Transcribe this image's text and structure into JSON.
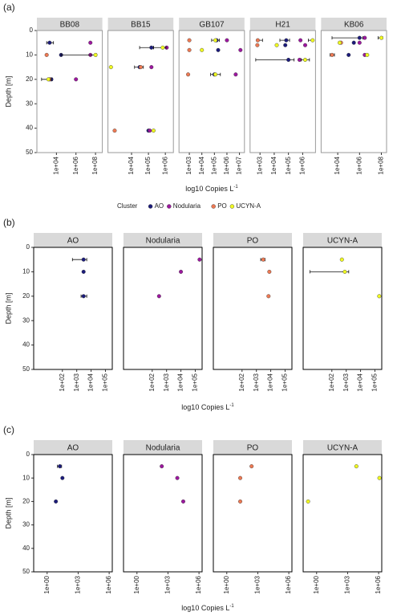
{
  "chart_data": [
    {
      "type": "scatter",
      "panel_label": "(a)",
      "ylabel": "Depth [m]",
      "xlabel": "log10 Copies L",
      "xlabel_sup": "-1",
      "ylim": [
        0,
        50
      ],
      "y_reversed": true,
      "yticks": [
        0,
        10,
        20,
        30,
        40,
        50
      ],
      "xlog": true,
      "legend_title": "Cluster",
      "facet_border": "#9a9a9a",
      "series": [
        {
          "name": "AO",
          "color": "#1b1b7a"
        },
        {
          "name": "Nodularia",
          "color": "#9c179e"
        },
        {
          "name": "PO",
          "color": "#ed7953"
        },
        {
          "name": "UCYN-A",
          "color": "#f0f921"
        }
      ],
      "facets": [
        {
          "title": "BB08",
          "xlim": [
            100,
            500000000
          ],
          "xticks": [
            {
              "value": 10000,
              "label": "1e+04"
            },
            {
              "value": 1000000,
              "label": "1e+06"
            },
            {
              "value": 100000000,
              "label": "1e+08"
            }
          ],
          "series": [
            {
              "y": [
                5,
                10,
                20
              ],
              "x": [
                2000,
                30000,
                3000
              ],
              "xerr": [
                [
                  1000,
                  5000
                ],
                null,
                [
                  2000,
                  4000
                ]
              ]
            },
            {
              "y": [
                5,
                10,
                20
              ],
              "x": [
                30000000,
                30000000,
                1000000
              ],
              "xerr": [
                null,
                null,
                null
              ]
            },
            {
              "y": [
                10,
                20
              ],
              "x": [
                1000,
                2000
              ],
              "xerr": [
                null,
                null
              ]
            },
            {
              "y": [
                10,
                20
              ],
              "x": [
                100000000,
                1500
              ],
              "xerr": [
                [
                  30000,
                  130000000
                ],
                [
                  300,
                  3000
                ]
              ]
            }
          ]
        },
        {
          "title": "BB15",
          "xlim": [
            400,
            3000000
          ],
          "xticks": [
            {
              "value": 10000,
              "label": "1e+04"
            },
            {
              "value": 100000,
              "label": "1e+05"
            },
            {
              "value": 1000000,
              "label": "1e+06"
            }
          ],
          "series": [
            {
              "y": [
                7,
                15,
                41
              ],
              "x": [
                150000,
                30000,
                100000
              ],
              "xerr": [
                [
                  30000,
                  200000
                ],
                [
                  15000,
                  50000
                ],
                null
              ]
            },
            {
              "y": [
                7,
                15,
                41
              ],
              "x": [
                1200000,
                150000,
                120000
              ],
              "xerr": [
                null,
                null,
                null
              ]
            },
            {
              "y": [
                15,
                41
              ],
              "x": [
                35000,
                1000
              ],
              "xerr": [
                null,
                null
              ]
            },
            {
              "y": [
                7,
                15,
                41
              ],
              "x": [
                700000,
                600,
                200000
              ],
              "xerr": [
                [
                  200000,
                  1100000
                ],
                null,
                null
              ]
            }
          ]
        },
        {
          "title": "GB107",
          "xlim": [
            150,
            25000000
          ],
          "xticks": [
            {
              "value": 1000,
              "label": "1e+03"
            },
            {
              "value": 10000,
              "label": "1e+04"
            },
            {
              "value": 100000,
              "label": "1e+05"
            },
            {
              "value": 1000000,
              "label": "1e+06"
            },
            {
              "value": 10000000,
              "label": "1e+07"
            }
          ],
          "series": [
            {
              "y": [
                4,
                8,
                18
              ],
              "x": [
                150000,
                200000,
                100000
              ],
              "xerr": [
                [
                  60000,
                  250000
                ],
                null,
                [
                  50000,
                  300000
                ]
              ]
            },
            {
              "y": [
                4,
                8,
                18
              ],
              "x": [
                1000000,
                12000000,
                5000000
              ],
              "xerr": [
                null,
                null,
                null
              ]
            },
            {
              "y": [
                4,
                8,
                18
              ],
              "x": [
                1000,
                1000,
                800
              ],
              "xerr": [
                null,
                null,
                null
              ]
            },
            {
              "y": [
                4,
                8,
                18
              ],
              "x": [
                120000,
                10000,
                120000
              ],
              "xerr": [
                null,
                null,
                null
              ]
            }
          ]
        },
        {
          "title": "H21",
          "xlim": [
            200,
            8000000
          ],
          "xticks": [
            {
              "value": 1000,
              "label": "1e+03"
            },
            {
              "value": 10000,
              "label": "1e+04"
            },
            {
              "value": 100000,
              "label": "1e+05"
            },
            {
              "value": 1000000,
              "label": "1e+06"
            }
          ],
          "series": [
            {
              "y": [
                4,
                6,
                12
              ],
              "x": [
                70000,
                60000,
                100000
              ],
              "xerr": [
                [
                  25000,
                  120000
                ],
                null,
                [
                  500,
                  250000
                ]
              ]
            },
            {
              "y": [
                4,
                6,
                12
              ],
              "x": [
                700000,
                1500000,
                600000
              ],
              "xerr": [
                null,
                null,
                null
              ]
            },
            {
              "y": [
                4,
                6
              ],
              "x": [
                700,
                650
              ],
              "xerr": [
                [
                  600,
                  1500
                ],
                null
              ]
            },
            {
              "y": [
                4,
                6,
                12
              ],
              "x": [
                5000000,
                15000,
                1500000
              ],
              "xerr": [
                [
                  2500000,
                  5500000
                ],
                null,
                [
                  800000,
                  3000000
                ]
              ]
            }
          ]
        },
        {
          "title": "KB06",
          "xlim": [
            300,
            300000000
          ],
          "xticks": [
            {
              "value": 10000,
              "label": "1e+04"
            },
            {
              "value": 1000000,
              "label": "1e+06"
            },
            {
              "value": 100000000,
              "label": "1e+08"
            }
          ],
          "series": [
            {
              "y": [
                3,
                5,
                10
              ],
              "x": [
                1000000,
                300000,
                100000
              ],
              "xerr": [
                [
                  3000,
                  2000000
                ],
                null,
                null
              ]
            },
            {
              "y": [
                3,
                5,
                10
              ],
              "x": [
                3000000,
                1000000,
                3000000
              ],
              "xerr": [
                null,
                null,
                null
              ]
            },
            {
              "y": [
                5,
                10
              ],
              "x": [
                20000,
                3000
              ],
              "xerr": [
                null,
                [
                  2000,
                  5000
                ]
              ]
            },
            {
              "y": [
                3,
                5,
                10
              ],
              "x": [
                100000000,
                15000,
                5000000
              ],
              "xerr": [
                [
                  50000000,
                  130000000
                ],
                null,
                null
              ]
            }
          ]
        }
      ]
    },
    {
      "type": "scatter",
      "panel_label": "(b)",
      "ylabel": "Depth [m]",
      "xlabel": "log10 Copies L",
      "xlabel_sup": "-1",
      "ylim": [
        0,
        50
      ],
      "y_reversed": true,
      "yticks": [
        0,
        10,
        20,
        30,
        40,
        50
      ],
      "xlog": true,
      "facet_border": "#000000",
      "xlim": [
        1,
        300000
      ],
      "xticks": [
        {
          "value": 100,
          "label": "1e+02"
        },
        {
          "value": 1000,
          "label": "1e+03"
        },
        {
          "value": 10000,
          "label": "1e+04"
        },
        {
          "value": 100000,
          "label": "1e+05"
        }
      ],
      "facets": [
        {
          "title": "AO",
          "color": "#1b1b7a",
          "series": [
            {
              "y": [
                5,
                10,
                20
              ],
              "x": [
                3000,
                3000,
                3000
              ],
              "xerr": [
                [
                  500,
                  5000
                ],
                null,
                [
                  2000,
                  5000
                ]
              ]
            }
          ]
        },
        {
          "title": "Nodularia",
          "color": "#9c179e",
          "series": [
            {
              "y": [
                5,
                10,
                20
              ],
              "x": [
                200000,
                10000,
                300
              ],
              "xerr": [
                null,
                null,
                null
              ]
            }
          ]
        },
        {
          "title": "PO",
          "color": "#ed7953",
          "series": [
            {
              "y": [
                5,
                10,
                20
              ],
              "x": [
                3000,
                8000,
                7000
              ],
              "xerr": [
                [
                  2000,
                  4000
                ],
                null,
                null
              ]
            }
          ]
        },
        {
          "title": "UCYN-A",
          "color": "#f0f921",
          "series": [
            {
              "y": [
                5,
                10,
                20
              ],
              "x": [
                500,
                800,
                200000
              ],
              "xerr": [
                null,
                [
                  3,
                  1500
                ],
                null
              ]
            }
          ]
        }
      ]
    },
    {
      "type": "scatter",
      "panel_label": "(c)",
      "ylabel": "Depth [m]",
      "xlabel": "log10 Copies L",
      "xlabel_sup": "-1",
      "ylim": [
        0,
        50
      ],
      "y_reversed": true,
      "yticks": [
        0,
        10,
        20,
        30,
        40,
        50
      ],
      "xlog": true,
      "facet_border": "#000000",
      "xlim": [
        0.05,
        2000000
      ],
      "xticks": [
        {
          "value": 1,
          "label": "1e+00"
        },
        {
          "value": 1000,
          "label": "1e+03"
        },
        {
          "value": 1000000,
          "label": "1e+06"
        }
      ],
      "facets": [
        {
          "title": "AO",
          "color": "#1b1b7a",
          "series": [
            {
              "y": [
                5,
                10,
                20
              ],
              "x": [
                17,
                30,
                7
              ],
              "xerr": [
                [
                  10,
                  25
                ],
                null,
                null
              ]
            }
          ]
        },
        {
          "title": "Nodularia",
          "color": "#9c179e",
          "series": [
            {
              "y": [
                5,
                10,
                20
              ],
              "x": [
                250,
                8000,
                30000
              ],
              "xerr": [
                null,
                null,
                null
              ]
            }
          ]
        },
        {
          "title": "PO",
          "color": "#ed7953",
          "series": [
            {
              "y": [
                5,
                10,
                20
              ],
              "x": [
                250,
                20,
                20
              ],
              "xerr": [
                null,
                null,
                null
              ]
            }
          ]
        },
        {
          "title": "UCYN-A",
          "color": "#f0f921",
          "series": [
            {
              "y": [
                5,
                10,
                20
              ],
              "x": [
                7000,
                1200000,
                0.15
              ],
              "xerr": [
                null,
                null,
                null
              ]
            }
          ]
        }
      ]
    }
  ]
}
